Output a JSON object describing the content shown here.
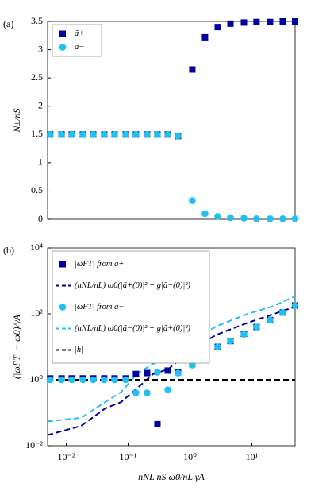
{
  "chart_data": [
    {
      "type": "scatter",
      "panel_label": "(a)",
      "ylabel": "N±/nS",
      "xscale": "log",
      "xlim": [
        0.005,
        50
      ],
      "ylim": [
        0,
        3.5
      ],
      "yticks": [
        0,
        0.5,
        1,
        1.5,
        2,
        2.5,
        3,
        3.5
      ],
      "legend": "upper left",
      "x": [
        0.0055,
        0.0084,
        0.0123,
        0.0186,
        0.0273,
        0.0412,
        0.0605,
        0.0916,
        0.134,
        0.203,
        0.298,
        0.438,
        0.642,
        1.09,
        1.75,
        2.81,
        4.51,
        7.45,
        11.9,
        19.7,
        31.6,
        50
      ],
      "series": [
        {
          "name": "ã+",
          "color": "#0000a0",
          "marker": "square",
          "values": [
            1.5,
            1.5,
            1.5,
            1.5,
            1.5,
            1.5,
            1.5,
            1.5,
            1.5,
            1.5,
            1.5,
            1.5,
            1.47,
            2.65,
            3.22,
            3.4,
            3.46,
            3.48,
            3.49,
            3.49,
            3.5,
            3.5
          ]
        },
        {
          "name": "ã−",
          "color": "#20c0f0",
          "marker": "circle",
          "values": [
            1.5,
            1.5,
            1.5,
            1.5,
            1.5,
            1.5,
            1.5,
            1.5,
            1.5,
            1.5,
            1.5,
            1.5,
            1.47,
            0.33,
            0.1,
            0.05,
            0.03,
            0.02,
            0.01,
            0.01,
            0.01,
            0.01
          ]
        }
      ]
    },
    {
      "type": "scatter",
      "panel_label": "(b)",
      "ylabel": "(|ωFT| − ω0)/γA",
      "xlabel": "nNL nS ω0/nL γA",
      "xscale": "log",
      "yscale": "log",
      "xlim": [
        0.005,
        50
      ],
      "ylim": [
        0.01,
        10000
      ],
      "xticks": [
        {
          "value": 0.01,
          "label": "10⁻²"
        },
        {
          "value": 0.1,
          "label": "10⁻¹"
        },
        {
          "value": 1,
          "label": "10⁰"
        },
        {
          "value": 10,
          "label": "10¹"
        }
      ],
      "yticks": [
        {
          "value": 0.01,
          "label": "10⁻²"
        },
        {
          "value": 1,
          "label": "10⁰"
        },
        {
          "value": 100,
          "label": "10²"
        },
        {
          "value": 10000,
          "label": "10⁴"
        }
      ],
      "legend": "upper left",
      "x": [
        0.0055,
        0.0084,
        0.0123,
        0.0186,
        0.0273,
        0.0412,
        0.0605,
        0.0916,
        0.134,
        0.203,
        0.298,
        0.438,
        0.642,
        1.09,
        1.75,
        2.81,
        4.51,
        7.45,
        11.9,
        19.7,
        31.6,
        50
      ],
      "series": [
        {
          "name": "|ωFT| from ã+",
          "color": "#0000a0",
          "marker": "square",
          "values": [
            1.1,
            1.1,
            1.1,
            1.1,
            1.1,
            1.1,
            1.1,
            1.1,
            1.5,
            1.6,
            0.045,
            1.9,
            1.7,
            3,
            6,
            10,
            15,
            25,
            40,
            65,
            110,
            180
          ]
        },
        {
          "name": "(nNL/nL) ω0(|ã+(0)|² + g|ã−(0)|²)",
          "color": "#0000a0",
          "line": "dashed",
          "x": [
            0.005,
            0.0175,
            0.0425,
            0.077,
            0.138,
            0.25,
            0.45,
            1,
            2.65,
            8.6,
            21,
            50
          ],
          "values": [
            0.021,
            0.04,
            0.135,
            0.21,
            0.54,
            1.47,
            2.1,
            7.8,
            23,
            54,
            94,
            165
          ]
        },
        {
          "name": "|ωFT| from ã−",
          "color": "#20c0f0",
          "marker": "circle",
          "values": [
            1,
            1,
            1,
            1,
            1,
            1,
            1,
            1,
            0.4,
            0.4,
            1.7,
            0.5,
            1.6,
            2.8,
            5.5,
            10,
            15,
            24,
            40,
            65,
            110,
            180
          ]
        },
        {
          "name": "(nNL/nL) ω0(|ã−(0)|² + g|ã+(0)|²)",
          "color": "#20c0f0",
          "line": "dashed",
          "x": [
            0.005,
            0.0175,
            0.0425,
            0.077,
            0.138,
            0.25,
            0.45,
            1,
            2.65,
            8.6,
            21,
            50
          ],
          "values": [
            0.055,
            0.07,
            0.21,
            0.42,
            1.5,
            3,
            4.7,
            13.6,
            42,
            100,
            165,
            340
          ]
        },
        {
          "name": "|h|",
          "color": "#000000",
          "line": "dashed",
          "x": [
            0.005,
            50
          ],
          "values": [
            1,
            1
          ]
        }
      ]
    }
  ]
}
